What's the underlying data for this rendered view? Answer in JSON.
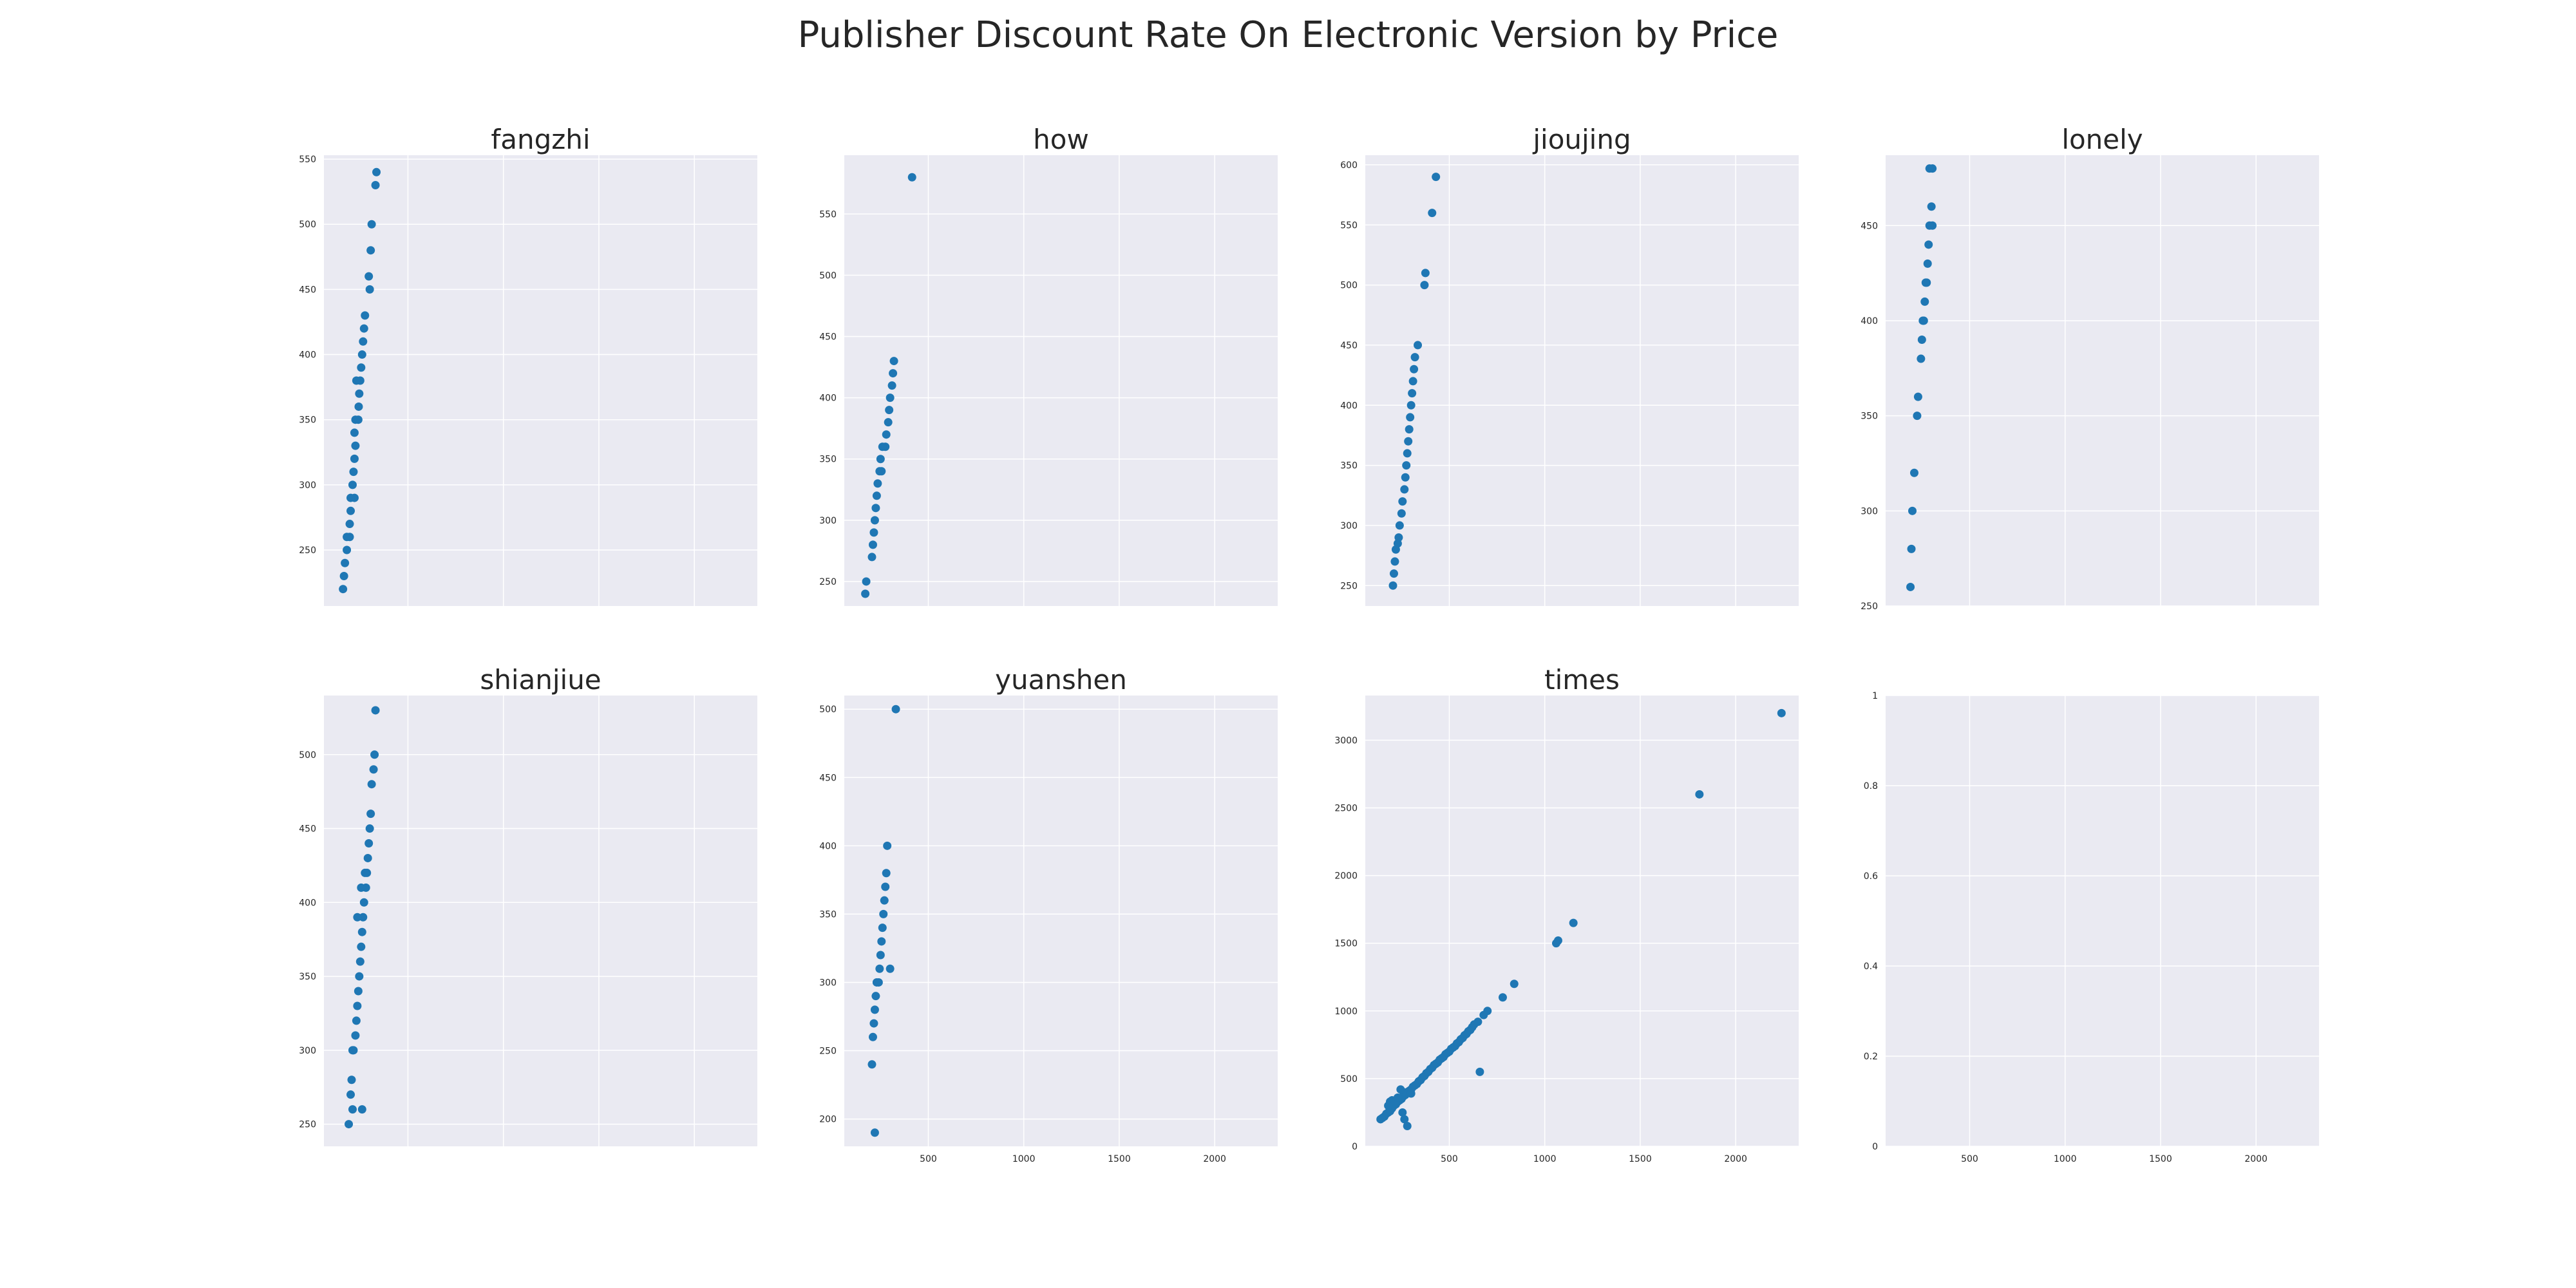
{
  "title": "Publisher Discount Rate On Electronic Version by Price",
  "colors": {
    "panel_bg": "#EAEAF2",
    "grid": "#FFFFFF",
    "marker": "#1F77B4",
    "text": "#262626"
  },
  "chart_data": [
    {
      "type": "scatter",
      "title": "fangzhi",
      "xlim": [
        60,
        2330
      ],
      "ylim": [
        207,
        553
      ],
      "xticks": [],
      "yticks": [
        250,
        300,
        350,
        400,
        450,
        500,
        550
      ],
      "grid": true,
      "points": [
        [
          335,
          540
        ],
        [
          330,
          530
        ],
        [
          310,
          500
        ],
        [
          305,
          480
        ],
        [
          295,
          460
        ],
        [
          300,
          450
        ],
        [
          275,
          430
        ],
        [
          270,
          420
        ],
        [
          265,
          410
        ],
        [
          260,
          400
        ],
        [
          255,
          390
        ],
        [
          250,
          380
        ],
        [
          230,
          380
        ],
        [
          245,
          370
        ],
        [
          242,
          360
        ],
        [
          240,
          350
        ],
        [
          225,
          350
        ],
        [
          220,
          340
        ],
        [
          225,
          330
        ],
        [
          220,
          320
        ],
        [
          215,
          310
        ],
        [
          210,
          300
        ],
        [
          220,
          290
        ],
        [
          200,
          290
        ],
        [
          200,
          280
        ],
        [
          195,
          270
        ],
        [
          195,
          260
        ],
        [
          180,
          260
        ],
        [
          180,
          250
        ],
        [
          170,
          240
        ],
        [
          165,
          230
        ],
        [
          160,
          220
        ]
      ]
    },
    {
      "type": "scatter",
      "title": "how",
      "xlim": [
        60,
        2330
      ],
      "ylim": [
        230,
        598
      ],
      "xticks": [],
      "yticks": [
        250,
        300,
        350,
        400,
        450,
        500,
        550
      ],
      "grid": true,
      "points": [
        [
          415,
          580
        ],
        [
          320,
          430
        ],
        [
          315,
          420
        ],
        [
          310,
          410
        ],
        [
          300,
          400
        ],
        [
          295,
          390
        ],
        [
          290,
          380
        ],
        [
          280,
          370
        ],
        [
          275,
          360
        ],
        [
          260,
          360
        ],
        [
          250,
          350
        ],
        [
          245,
          340
        ],
        [
          255,
          340
        ],
        [
          235,
          330
        ],
        [
          230,
          320
        ],
        [
          225,
          310
        ],
        [
          220,
          300
        ],
        [
          215,
          290
        ],
        [
          210,
          280
        ],
        [
          205,
          270
        ],
        [
          175,
          250
        ],
        [
          170,
          240
        ]
      ]
    },
    {
      "type": "scatter",
      "title": "jioujing",
      "xlim": [
        60,
        2330
      ],
      "ylim": [
        233,
        608
      ],
      "xticks": [],
      "yticks": [
        250,
        300,
        350,
        400,
        450,
        500,
        550,
        600
      ],
      "grid": true,
      "points": [
        [
          430,
          590
        ],
        [
          410,
          560
        ],
        [
          375,
          510
        ],
        [
          370,
          500
        ],
        [
          335,
          450
        ],
        [
          320,
          440
        ],
        [
          315,
          430
        ],
        [
          310,
          420
        ],
        [
          305,
          410
        ],
        [
          300,
          400
        ],
        [
          295,
          390
        ],
        [
          290,
          380
        ],
        [
          285,
          370
        ],
        [
          280,
          360
        ],
        [
          275,
          350
        ],
        [
          270,
          340
        ],
        [
          265,
          330
        ],
        [
          255,
          320
        ],
        [
          250,
          310
        ],
        [
          240,
          300
        ],
        [
          235,
          290
        ],
        [
          230,
          285
        ],
        [
          220,
          280
        ],
        [
          215,
          270
        ],
        [
          210,
          260
        ],
        [
          205,
          250
        ]
      ]
    },
    {
      "type": "scatter",
      "title": "lonely",
      "xlim": [
        60,
        2330
      ],
      "ylim": [
        250,
        487
      ],
      "xticks": [],
      "yticks": [
        250,
        300,
        350,
        400,
        450
      ],
      "grid": true,
      "points": [
        [
          290,
          480
        ],
        [
          305,
          480
        ],
        [
          300,
          460
        ],
        [
          305,
          450
        ],
        [
          290,
          450
        ],
        [
          285,
          440
        ],
        [
          280,
          430
        ],
        [
          275,
          420
        ],
        [
          270,
          420
        ],
        [
          265,
          410
        ],
        [
          260,
          400
        ],
        [
          255,
          400
        ],
        [
          250,
          390
        ],
        [
          245,
          380
        ],
        [
          230,
          360
        ],
        [
          225,
          350
        ],
        [
          210,
          320
        ],
        [
          200,
          300
        ],
        [
          195,
          280
        ],
        [
          190,
          260
        ]
      ]
    },
    {
      "type": "scatter",
      "title": "shianjiue",
      "xlim": [
        60,
        2330
      ],
      "ylim": [
        235,
        540
      ],
      "xticks": [],
      "yticks": [
        250,
        300,
        350,
        400,
        450,
        500
      ],
      "grid": true,
      "points": [
        [
          330,
          530
        ],
        [
          325,
          500
        ],
        [
          320,
          490
        ],
        [
          310,
          480
        ],
        [
          305,
          460
        ],
        [
          300,
          450
        ],
        [
          295,
          440
        ],
        [
          290,
          430
        ],
        [
          285,
          420
        ],
        [
          275,
          420
        ],
        [
          280,
          410
        ],
        [
          255,
          410
        ],
        [
          270,
          400
        ],
        [
          265,
          390
        ],
        [
          235,
          390
        ],
        [
          260,
          380
        ],
        [
          255,
          370
        ],
        [
          250,
          360
        ],
        [
          245,
          350
        ],
        [
          240,
          340
        ],
        [
          235,
          330
        ],
        [
          230,
          320
        ],
        [
          225,
          310
        ],
        [
          215,
          300
        ],
        [
          210,
          300
        ],
        [
          205,
          280
        ],
        [
          200,
          270
        ],
        [
          210,
          260
        ],
        [
          260,
          260
        ],
        [
          190,
          250
        ]
      ]
    },
    {
      "type": "scatter",
      "title": "yuanshen",
      "xlim": [
        60,
        2330
      ],
      "ylim": [
        180,
        510
      ],
      "xticks": [
        500,
        1000,
        1500,
        2000
      ],
      "yticks": [
        200,
        250,
        300,
        350,
        400,
        450,
        500
      ],
      "grid": true,
      "points": [
        [
          330,
          500
        ],
        [
          285,
          400
        ],
        [
          300,
          310
        ],
        [
          280,
          380
        ],
        [
          275,
          370
        ],
        [
          270,
          360
        ],
        [
          265,
          350
        ],
        [
          260,
          340
        ],
        [
          255,
          330
        ],
        [
          250,
          320
        ],
        [
          245,
          310
        ],
        [
          240,
          300
        ],
        [
          230,
          300
        ],
        [
          225,
          290
        ],
        [
          220,
          280
        ],
        [
          215,
          270
        ],
        [
          210,
          260
        ],
        [
          205,
          240
        ],
        [
          220,
          190
        ]
      ]
    },
    {
      "type": "scatter",
      "title": "times",
      "xlim": [
        60,
        2330
      ],
      "ylim": [
        0,
        3330
      ],
      "xticks": [
        500,
        1000,
        1500,
        2000
      ],
      "yticks": [
        0,
        500,
        1000,
        1500,
        2000,
        2500,
        3000
      ],
      "grid": true,
      "points": [
        [
          2240,
          3200
        ],
        [
          1810,
          2600
        ],
        [
          1150,
          1650
        ],
        [
          1070,
          1520
        ],
        [
          1060,
          1500
        ],
        [
          840,
          1200
        ],
        [
          780,
          1100
        ],
        [
          660,
          550
        ],
        [
          700,
          1000
        ],
        [
          680,
          970
        ],
        [
          650,
          920
        ],
        [
          620,
          880
        ],
        [
          600,
          850
        ],
        [
          580,
          820
        ],
        [
          560,
          790
        ],
        [
          540,
          760
        ],
        [
          520,
          730
        ],
        [
          500,
          700
        ],
        [
          480,
          680
        ],
        [
          460,
          650
        ],
        [
          440,
          620
        ],
        [
          420,
          600
        ],
        [
          400,
          570
        ],
        [
          380,
          540
        ],
        [
          360,
          510
        ],
        [
          340,
          480
        ],
        [
          320,
          450
        ],
        [
          300,
          420
        ],
        [
          280,
          400
        ],
        [
          260,
          370
        ],
        [
          240,
          340
        ],
        [
          220,
          310
        ],
        [
          200,
          280
        ],
        [
          180,
          250
        ],
        [
          160,
          220
        ],
        [
          140,
          200
        ],
        [
          150,
          210
        ],
        [
          170,
          240
        ],
        [
          190,
          260
        ],
        [
          210,
          300
        ],
        [
          230,
          330
        ],
        [
          250,
          350
        ],
        [
          270,
          380
        ],
        [
          290,
          410
        ],
        [
          310,
          440
        ],
        [
          330,
          460
        ],
        [
          350,
          490
        ],
        [
          370,
          520
        ],
        [
          390,
          550
        ],
        [
          410,
          580
        ],
        [
          430,
          610
        ],
        [
          450,
          640
        ],
        [
          470,
          660
        ],
        [
          490,
          690
        ],
        [
          510,
          720
        ],
        [
          530,
          740
        ],
        [
          550,
          770
        ],
        [
          570,
          800
        ],
        [
          590,
          830
        ],
        [
          610,
          860
        ],
        [
          630,
          900
        ],
        [
          200,
          340
        ],
        [
          260,
          400
        ],
        [
          255,
          250
        ],
        [
          265,
          200
        ],
        [
          280,
          150
        ],
        [
          245,
          420
        ],
        [
          300,
          390
        ],
        [
          220,
          330
        ],
        [
          230,
          360
        ],
        [
          190,
          330
        ],
        [
          180,
          300
        ]
      ]
    },
    {
      "type": "scatter",
      "title": "",
      "xlim": [
        60,
        2330
      ],
      "ylim": [
        0,
        1
      ],
      "xticks": [
        500,
        1000,
        1500,
        2000
      ],
      "yticks": [
        0.0,
        0.2,
        0.4,
        0.6,
        0.8,
        1.0
      ],
      "grid": true,
      "points": []
    }
  ]
}
